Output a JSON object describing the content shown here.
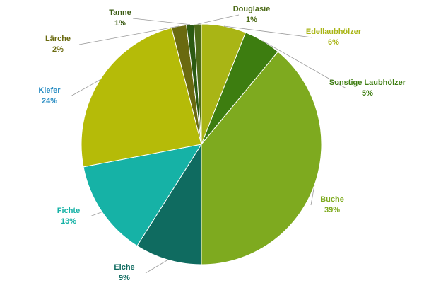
{
  "chart_data": {
    "type": "pie",
    "categories": [
      "Edellaubhölzer",
      "Sonstige Laubhölzer",
      "Buche",
      "Eiche",
      "Fichte",
      "Kiefer",
      "Lärche",
      "Tanne",
      "Douglasie"
    ],
    "values": [
      6,
      5,
      39,
      9,
      13,
      24,
      2,
      1,
      1
    ],
    "value_labels": [
      "6%",
      "5%",
      "39%",
      "9%",
      "13%",
      "24%",
      "2%",
      "1%",
      "1%"
    ],
    "colors": [
      "#a9b515",
      "#3d7d10",
      "#7eaa1f",
      "#0f6b60",
      "#16b2a6",
      "#b5bb08",
      "#6a6a10",
      "#2c5a12",
      "#4d6b18"
    ],
    "label_colors": [
      "#a9b515",
      "#3d7d10",
      "#7eaa1f",
      "#0f6b60",
      "#16b2a6",
      "#2d8fc4",
      "#6a6a10",
      "#3a5a12",
      "#4d6b18"
    ]
  }
}
